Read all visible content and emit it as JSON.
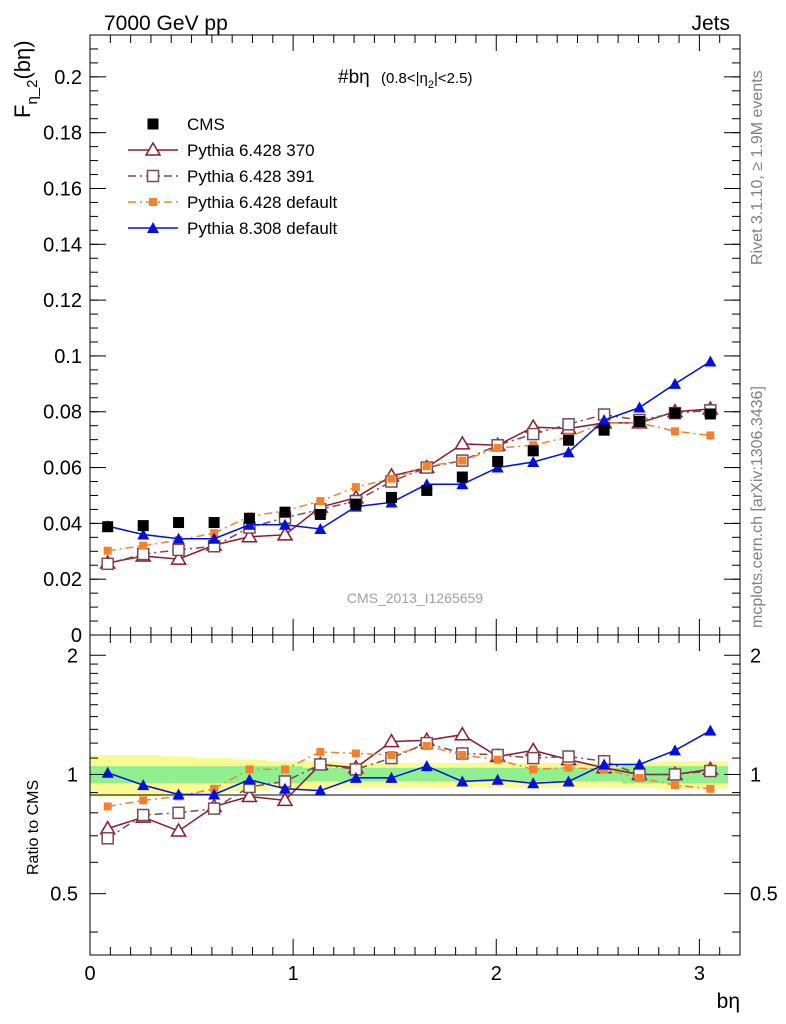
{
  "header": {
    "left": "7000 GeV pp",
    "right": "Jets"
  },
  "side_labels": {
    "rivet": "Rivet 3.1.10, ≥ 1.9M events",
    "mcplots": "mcplots.cern.ch [arXiv:1306.3436]"
  },
  "watermark": "CMS_2013_I1265659",
  "colors": {
    "CMS": "#000000",
    "Pythia 6.428 370": "#8b1a2b",
    "Pythia 6.428 391": "#7a4a52",
    "Pythia 6.428 default": "#f5822a",
    "Pythia 8.308 default": "#0010e0",
    "band_inner": "#90f090",
    "band_outer": "#fafa90"
  },
  "chart_data": [
    {
      "type": "scatter",
      "panel": "main",
      "title": "#bη",
      "title_sub": "(0.8<|η",
      "title_sub2": "2",
      "title_sub3": "|<2.5)",
      "ylabel": "F",
      "ylabel_sub": "η_2",
      "ylabel_tail": "(bη)",
      "xlim": [
        0,
        3.2
      ],
      "ylim": [
        0,
        0.215
      ],
      "yticks": [
        0,
        0.02,
        0.04,
        0.06,
        0.08,
        0.1,
        0.12,
        0.14,
        0.16,
        0.18,
        0.2
      ],
      "ytick_labels": [
        "0",
        "0.02",
        "0.04",
        "0.06",
        "0.08",
        "0.1",
        "0.12",
        "0.14",
        "0.16",
        "0.18",
        "0.2"
      ],
      "legend_position": "top-left",
      "x": [
        0.087,
        0.262,
        0.436,
        0.611,
        0.785,
        0.96,
        1.134,
        1.309,
        1.484,
        1.658,
        1.833,
        2.007,
        2.182,
        2.356,
        2.531,
        2.705,
        2.88,
        3.054
      ],
      "series": [
        {
          "name": "CMS",
          "marker": "square-filled",
          "values": [
            0.0388,
            0.0392,
            0.0403,
            0.0403,
            0.0418,
            0.044,
            0.0432,
            0.0469,
            0.0493,
            0.0518,
            0.0566,
            0.0622,
            0.066,
            0.0698,
            0.0734,
            0.0765,
            0.0795,
            0.0792
          ]
        },
        {
          "name": "Pythia 6.428 370",
          "marker": "triangle-open",
          "dash": "",
          "values": [
            0.0258,
            0.0283,
            0.0272,
            0.0322,
            0.0352,
            0.0359,
            0.0458,
            0.0492,
            0.057,
            0.06,
            0.0685,
            0.068,
            0.0745,
            0.074,
            0.076,
            0.076,
            0.08,
            0.081
          ]
        },
        {
          "name": "Pythia 6.428 391",
          "marker": "square-open",
          "dash": "8,4,2,4",
          "values": [
            0.0255,
            0.029,
            0.0305,
            0.0318,
            0.0385,
            0.042,
            0.045,
            0.048,
            0.055,
            0.06,
            0.0625,
            0.068,
            0.072,
            0.0755,
            0.079,
            0.077,
            0.0795,
            0.0805
          ]
        },
        {
          "name": "Pythia 6.428 default",
          "marker": "square-small",
          "dash": "8,4,2,4",
          "values": [
            0.0302,
            0.032,
            0.034,
            0.0365,
            0.0425,
            0.0445,
            0.048,
            0.053,
            0.056,
            0.0605,
            0.0625,
            0.067,
            0.068,
            0.071,
            0.076,
            0.076,
            0.073,
            0.0715
          ]
        },
        {
          "name": "Pythia 8.308 default",
          "marker": "triangle-filled",
          "dash": "",
          "values": [
            0.039,
            0.036,
            0.0345,
            0.0345,
            0.0395,
            0.0395,
            0.038,
            0.046,
            0.0475,
            0.054,
            0.054,
            0.06,
            0.062,
            0.0655,
            0.077,
            0.0815,
            0.09,
            0.098
          ]
        }
      ]
    },
    {
      "type": "scatter",
      "panel": "ratio",
      "ylabel": "Ratio to CMS",
      "xlabel": "bη",
      "xlim": [
        0,
        3.2
      ],
      "ylim": [
        0.35,
        2.25
      ],
      "yticks": [
        0.5,
        1,
        2
      ],
      "ytick_labels": [
        "0.5",
        "1",
        "2"
      ],
      "xticks": [
        0,
        1,
        2,
        3
      ],
      "xtick_labels": [
        "0",
        "1",
        "2",
        "3"
      ],
      "band_inner": [
        0.05,
        0.05,
        0.05,
        0.05,
        0.05,
        0.05,
        0.04,
        0.04,
        0.04,
        0.04,
        0.04,
        0.04,
        0.04,
        0.04,
        0.04,
        0.05,
        0.05,
        0.05
      ],
      "band_outer": [
        0.12,
        0.12,
        0.11,
        0.1,
        0.09,
        0.08,
        0.08,
        0.07,
        0.07,
        0.07,
        0.07,
        0.07,
        0.07,
        0.07,
        0.07,
        0.07,
        0.08,
        0.08
      ],
      "series": [
        {
          "name": "Pythia 6.428 370",
          "values": [
            0.73,
            0.78,
            0.72,
            0.83,
            0.88,
            0.86,
            1.06,
            1.04,
            1.21,
            1.22,
            1.26,
            1.11,
            1.15,
            1.09,
            1.04,
            1.0,
            1.0,
            1.03
          ]
        },
        {
          "name": "Pythia 6.428 391",
          "values": [
            0.69,
            0.79,
            0.8,
            0.82,
            0.93,
            0.96,
            1.06,
            1.03,
            1.1,
            1.2,
            1.13,
            1.12,
            1.1,
            1.11,
            1.08,
            1.0,
            1.0,
            1.02
          ]
        },
        {
          "name": "Pythia 6.428 default",
          "values": [
            0.83,
            0.86,
            0.88,
            0.92,
            1.03,
            1.03,
            1.14,
            1.13,
            1.12,
            1.18,
            1.12,
            1.09,
            1.03,
            1.04,
            1.03,
            0.98,
            0.94,
            0.92
          ]
        },
        {
          "name": "Pythia 8.308 default",
          "values": [
            1.01,
            0.94,
            0.89,
            0.89,
            0.97,
            0.92,
            0.91,
            0.98,
            0.98,
            1.05,
            0.96,
            0.97,
            0.95,
            0.96,
            1.06,
            1.06,
            1.15,
            1.29
          ]
        }
      ]
    }
  ]
}
